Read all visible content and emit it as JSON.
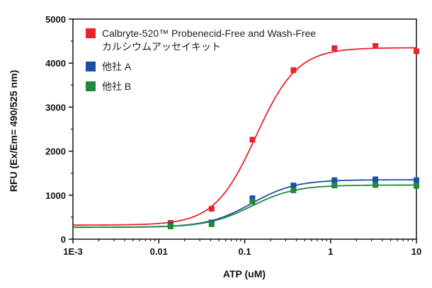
{
  "chart_data": {
    "type": "scatter",
    "xlabel": "ATP (uM)",
    "ylabel": "RFU (Ex/Em= 490/525 nm)",
    "xscale": "log",
    "xlim": [
      0.001,
      10
    ],
    "ylim": [
      0,
      5000
    ],
    "x_ticks": [
      0.001,
      0.01,
      0.1,
      1,
      10
    ],
    "x_tick_labels": [
      "1E-3",
      "0.01",
      "0.1",
      "1",
      "10"
    ],
    "y_ticks": [
      0,
      1000,
      2000,
      3000,
      4000,
      5000
    ],
    "y_tick_labels": [
      "0",
      "1000",
      "2000",
      "3000",
      "4000",
      "5000"
    ],
    "grid": false,
    "legend_position": "top-left",
    "series": [
      {
        "name_lines": [
          "Calbryte-520™ Probenecid-Free and Wash-Free",
          "カルシウムアッセイキット"
        ],
        "color": "#e8232a",
        "x": [
          0.0137,
          0.0412,
          0.123,
          0.37,
          1.11,
          3.33,
          10
        ],
        "y": [
          370,
          690,
          2260,
          3840,
          4340,
          4390,
          4270
        ],
        "fit": {
          "bottom": 320,
          "top": 4350,
          "ec50": 0.135,
          "hill": 1.8
        }
      },
      {
        "name_lines": [
          "他社 A"
        ],
        "color": "#1f4ea8",
        "x": [
          0.0137,
          0.0412,
          0.123,
          0.37,
          1.11,
          3.33,
          10
        ],
        "y": [
          320,
          380,
          930,
          1220,
          1340,
          1360,
          1340
        ],
        "fit": {
          "bottom": 270,
          "top": 1350,
          "ec50": 0.12,
          "hill": 1.7
        }
      },
      {
        "name_lines": [
          "他社 B"
        ],
        "color": "#1e8a3c",
        "x": [
          0.0137,
          0.0412,
          0.123,
          0.37,
          1.11,
          3.33,
          10
        ],
        "y": [
          290,
          340,
          850,
          1110,
          1220,
          1230,
          1210
        ],
        "fit": {
          "bottom": 270,
          "top": 1230,
          "ec50": 0.12,
          "hill": 1.7
        }
      }
    ]
  }
}
